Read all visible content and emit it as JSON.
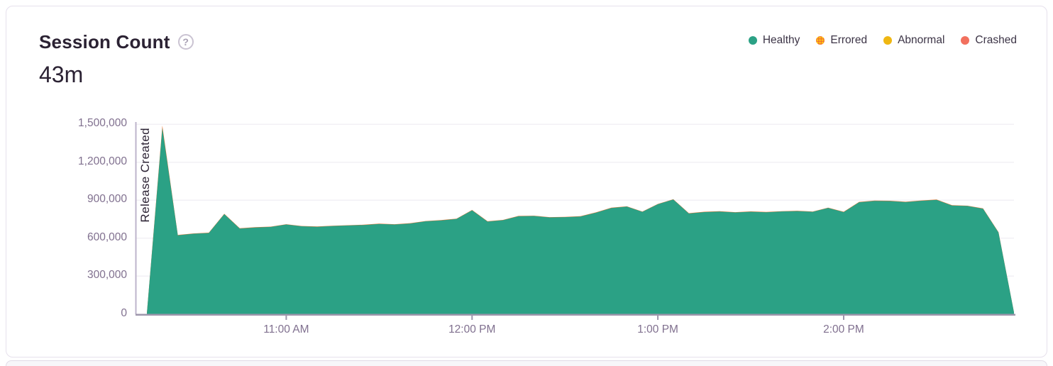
{
  "header": {
    "title": "Session Count",
    "help_glyph": "?",
    "total": "43m"
  },
  "legend": {
    "items": [
      {
        "id": "healthy",
        "label": "Healthy",
        "color": "#2BA185",
        "pattern": false
      },
      {
        "id": "errored",
        "label": "Errored",
        "color": "#F2732F",
        "pattern": true,
        "pattern_dot_color": "#FFD00E"
      },
      {
        "id": "abnormal",
        "label": "Abnormal",
        "color": "#EFB712",
        "pattern": false
      },
      {
        "id": "crashed",
        "label": "Crashed",
        "color": "#F2705E",
        "pattern": false
      }
    ]
  },
  "chart_data": {
    "type": "area",
    "stacked": true,
    "title": "Session Count",
    "xlabel": "",
    "ylabel": "",
    "grid": "horizontal",
    "legend_position": "top-right",
    "ylim": [
      0,
      1500000
    ],
    "x": [
      "10:15 AM",
      "10:20 AM",
      "10:25 AM",
      "10:30 AM",
      "10:35 AM",
      "10:40 AM",
      "10:45 AM",
      "10:50 AM",
      "10:55 AM",
      "11:00 AM",
      "11:05 AM",
      "11:10 AM",
      "11:15 AM",
      "11:20 AM",
      "11:25 AM",
      "11:30 AM",
      "11:35 AM",
      "11:40 AM",
      "11:45 AM",
      "11:50 AM",
      "11:55 AM",
      "12:00 PM",
      "12:05 PM",
      "12:10 PM",
      "12:15 PM",
      "12:20 PM",
      "12:25 PM",
      "12:30 PM",
      "12:35 PM",
      "12:40 PM",
      "12:45 PM",
      "12:50 PM",
      "12:55 PM",
      "1:00 PM",
      "1:05 PM",
      "1:10 PM",
      "1:15 PM",
      "1:20 PM",
      "1:25 PM",
      "1:30 PM",
      "1:35 PM",
      "1:40 PM",
      "1:45 PM",
      "1:50 PM",
      "1:55 PM",
      "2:00 PM",
      "2:05 PM",
      "2:10 PM",
      "2:15 PM",
      "2:20 PM",
      "2:25 PM",
      "2:30 PM",
      "2:35 PM",
      "2:40 PM",
      "2:45 PM",
      "2:50 PM",
      "2:55 PM"
    ],
    "series": [
      {
        "name": "Healthy",
        "color": "#2BA185",
        "values": [
          8000,
          1470000,
          623000,
          635000,
          641000,
          790000,
          676000,
          684000,
          689000,
          708000,
          694000,
          690000,
          696000,
          700000,
          704000,
          712000,
          708000,
          716000,
          733000,
          740000,
          752000,
          820000,
          731000,
          742000,
          773000,
          775000,
          764000,
          766000,
          771000,
          801000,
          838000,
          849000,
          808000,
          868000,
          905000,
          795000,
          806000,
          810000,
          803000,
          809000,
          805000,
          811000,
          814000,
          808000,
          839000,
          806000,
          884000,
          894000,
          893000,
          885000,
          895000,
          903000,
          858000,
          854000,
          833000,
          645000,
          15000
        ]
      },
      {
        "name": "Errored",
        "color": "#F2732F",
        "values": [
          500,
          18000,
          2500,
          2500,
          2500,
          2500,
          2500,
          2500,
          2500,
          2500,
          2500,
          2500,
          2500,
          2500,
          2500,
          2500,
          2500,
          2500,
          2500,
          2500,
          2500,
          2500,
          2500,
          2500,
          2500,
          2500,
          2500,
          2500,
          2500,
          2500,
          2500,
          2500,
          2500,
          2500,
          2500,
          2500,
          2500,
          2500,
          2500,
          2500,
          2500,
          2500,
          2500,
          2500,
          2500,
          2500,
          2500,
          2500,
          2500,
          2500,
          2500,
          2500,
          2500,
          2500,
          2500,
          2500,
          500
        ]
      }
    ],
    "y_ticks": [
      {
        "label": "0",
        "value": 0
      },
      {
        "label": "300,000",
        "value": 300000
      },
      {
        "label": "600,000",
        "value": 600000
      },
      {
        "label": "900,000",
        "value": 900000
      },
      {
        "label": "1,200,000",
        "value": 1200000
      },
      {
        "label": "1,500,000",
        "value": 1500000
      }
    ],
    "x_ticks": [
      {
        "label": "11:00 AM",
        "index": 9
      },
      {
        "label": "12:00 PM",
        "index": 21
      },
      {
        "label": "1:00 PM",
        "index": 33
      },
      {
        "label": "2:00 PM",
        "index": 45
      }
    ],
    "annotation": {
      "label": "Release Created"
    }
  },
  "colors": {
    "healthy": "#2BA185",
    "errored": "#F2732F",
    "abnormal": "#EFB712",
    "crashed": "#F2705E",
    "axis_line": "#9E96AC",
    "grid_line": "#F2F0F5",
    "release_line": "#BDB4CB",
    "text_dark": "#2B2233",
    "text_muted": "#80708F"
  }
}
